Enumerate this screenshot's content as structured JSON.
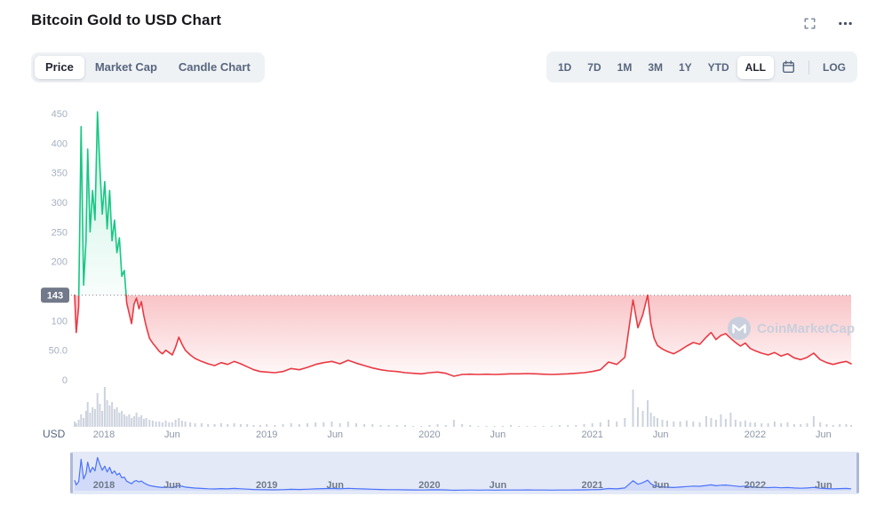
{
  "header": {
    "title": "Bitcoin Gold to USD Chart"
  },
  "toolbar": {
    "tabs": [
      {
        "label": "Price",
        "active": true
      },
      {
        "label": "Market Cap",
        "active": false
      },
      {
        "label": "Candle Chart",
        "active": false
      }
    ],
    "ranges": [
      {
        "label": "1D",
        "active": false
      },
      {
        "label": "7D",
        "active": false
      },
      {
        "label": "1M",
        "active": false
      },
      {
        "label": "3M",
        "active": false
      },
      {
        "label": "1Y",
        "active": false
      },
      {
        "label": "YTD",
        "active": false
      },
      {
        "label": "ALL",
        "active": true
      }
    ],
    "log_label": "LOG"
  },
  "watermark": {
    "label": "CoinMarketCap"
  },
  "chart_data": {
    "type": "line",
    "title": "Bitcoin Gold to USD Chart",
    "unit_label": "USD",
    "baseline": 143,
    "baseline_label": "143",
    "ylim": [
      0,
      450
    ],
    "x_range": [
      2017.82,
      2022.59
    ],
    "y_ticks": [
      {
        "v": 450,
        "label": "450"
      },
      {
        "v": 400,
        "label": "400"
      },
      {
        "v": 350,
        "label": "350"
      },
      {
        "v": 300,
        "label": "300"
      },
      {
        "v": 250,
        "label": "250"
      },
      {
        "v": 200,
        "label": "200"
      },
      {
        "v": 100,
        "label": "100"
      },
      {
        "v": 50,
        "label": "50.0"
      },
      {
        "v": 0,
        "label": "0"
      }
    ],
    "x_ticks": [
      {
        "t": 2018.0,
        "label": "2018"
      },
      {
        "t": 2018.42,
        "label": "Jun"
      },
      {
        "t": 2019.0,
        "label": "2019"
      },
      {
        "t": 2019.42,
        "label": "Jun"
      },
      {
        "t": 2020.0,
        "label": "2020"
      },
      {
        "t": 2020.42,
        "label": "Jun"
      },
      {
        "t": 2021.0,
        "label": "2021"
      },
      {
        "t": 2021.42,
        "label": "Jun"
      },
      {
        "t": 2022.0,
        "label": "2022"
      },
      {
        "t": 2022.42,
        "label": "Jun"
      }
    ],
    "colors": {
      "up": "#16C784",
      "down": "#EA3943",
      "volume": "#CDD3DE",
      "baseline": "#828DA0",
      "badge_bg": "#71798A",
      "badge_text": "#FFFFFF",
      "nav_line": "#4A72FB",
      "nav_fill": "rgba(74,114,251,0.12)",
      "nav_band": "#E4E9F7",
      "nav_handle": "#AEB9D6",
      "axis_text": "#A6B0C3",
      "x_axis_text": "#8C96A7",
      "unit_text": "#58667E"
    },
    "points": [
      [
        2017.82,
        143,
        6
      ],
      [
        2017.83,
        80,
        4
      ],
      [
        2017.845,
        125,
        8
      ],
      [
        2017.86,
        428,
        14
      ],
      [
        2017.875,
        160,
        10
      ],
      [
        2017.89,
        235,
        18
      ],
      [
        2017.9,
        390,
        28
      ],
      [
        2017.915,
        250,
        16
      ],
      [
        2017.93,
        320,
        22
      ],
      [
        2017.945,
        270,
        20
      ],
      [
        2017.96,
        453,
        38
      ],
      [
        2017.975,
        360,
        26
      ],
      [
        2017.99,
        280,
        18
      ],
      [
        2018.005,
        335,
        45
      ],
      [
        2018.02,
        255,
        30
      ],
      [
        2018.035,
        320,
        24
      ],
      [
        2018.05,
        235,
        28
      ],
      [
        2018.065,
        270,
        20
      ],
      [
        2018.08,
        215,
        22
      ],
      [
        2018.095,
        240,
        16
      ],
      [
        2018.11,
        175,
        18
      ],
      [
        2018.125,
        185,
        14
      ],
      [
        2018.14,
        130,
        12
      ],
      [
        2018.155,
        112,
        14
      ],
      [
        2018.17,
        95,
        10
      ],
      [
        2018.185,
        128,
        12
      ],
      [
        2018.2,
        138,
        16
      ],
      [
        2018.215,
        120,
        11
      ],
      [
        2018.23,
        132,
        13
      ],
      [
        2018.245,
        108,
        9
      ],
      [
        2018.26,
        90,
        10
      ],
      [
        2018.28,
        70,
        8
      ],
      [
        2018.3,
        62,
        7
      ],
      [
        2018.32,
        55,
        6
      ],
      [
        2018.34,
        48,
        6
      ],
      [
        2018.36,
        44,
        5
      ],
      [
        2018.38,
        50,
        7
      ],
      [
        2018.4,
        46,
        5
      ],
      [
        2018.42,
        42,
        5
      ],
      [
        2018.44,
        55,
        8
      ],
      [
        2018.46,
        72,
        10
      ],
      [
        2018.48,
        60,
        7
      ],
      [
        2018.5,
        50,
        6
      ],
      [
        2018.53,
        42,
        5
      ],
      [
        2018.56,
        36,
        4
      ],
      [
        2018.6,
        31,
        4
      ],
      [
        2018.64,
        27,
        3
      ],
      [
        2018.68,
        24,
        3
      ],
      [
        2018.72,
        29,
        4
      ],
      [
        2018.76,
        26,
        3
      ],
      [
        2018.8,
        31,
        4
      ],
      [
        2018.84,
        27,
        3
      ],
      [
        2018.88,
        22,
        3
      ],
      [
        2018.92,
        17,
        2
      ],
      [
        2018.96,
        14,
        2
      ],
      [
        2019.0,
        13,
        3
      ],
      [
        2019.05,
        12,
        2
      ],
      [
        2019.1,
        14,
        3
      ],
      [
        2019.15,
        19,
        4
      ],
      [
        2019.2,
        17,
        3
      ],
      [
        2019.25,
        21,
        4
      ],
      [
        2019.3,
        26,
        5
      ],
      [
        2019.35,
        29,
        5
      ],
      [
        2019.4,
        31,
        6
      ],
      [
        2019.45,
        27,
        4
      ],
      [
        2019.5,
        33,
        6
      ],
      [
        2019.55,
        28,
        4
      ],
      [
        2019.6,
        24,
        3
      ],
      [
        2019.65,
        20,
        3
      ],
      [
        2019.7,
        17,
        2
      ],
      [
        2019.75,
        15,
        2
      ],
      [
        2019.8,
        14,
        2
      ],
      [
        2019.85,
        12,
        2
      ],
      [
        2019.9,
        11,
        1
      ],
      [
        2019.95,
        10,
        1
      ],
      [
        2020.0,
        12,
        2
      ],
      [
        2020.05,
        13,
        3
      ],
      [
        2020.1,
        11,
        2
      ],
      [
        2020.15,
        6,
        8
      ],
      [
        2020.2,
        9,
        3
      ],
      [
        2020.25,
        9.5,
        2
      ],
      [
        2020.3,
        9,
        1
      ],
      [
        2020.35,
        9.5,
        1
      ],
      [
        2020.4,
        9,
        1
      ],
      [
        2020.45,
        9.5,
        1
      ],
      [
        2020.5,
        10,
        2
      ],
      [
        2020.55,
        10,
        1
      ],
      [
        2020.6,
        10.5,
        1
      ],
      [
        2020.65,
        10,
        1
      ],
      [
        2020.7,
        9.5,
        1
      ],
      [
        2020.75,
        9,
        1
      ],
      [
        2020.8,
        9.5,
        2
      ],
      [
        2020.85,
        10,
        2
      ],
      [
        2020.9,
        11,
        2
      ],
      [
        2020.95,
        12,
        3
      ],
      [
        2021.0,
        14,
        4
      ],
      [
        2021.05,
        17,
        5
      ],
      [
        2021.1,
        30,
        8
      ],
      [
        2021.15,
        26,
        6
      ],
      [
        2021.2,
        38,
        10
      ],
      [
        2021.25,
        135,
        42
      ],
      [
        2021.28,
        88,
        22
      ],
      [
        2021.31,
        110,
        18
      ],
      [
        2021.34,
        143,
        30
      ],
      [
        2021.36,
        95,
        16
      ],
      [
        2021.38,
        70,
        12
      ],
      [
        2021.4,
        58,
        10
      ],
      [
        2021.43,
        52,
        8
      ],
      [
        2021.46,
        48,
        7
      ],
      [
        2021.5,
        44,
        6
      ],
      [
        2021.54,
        50,
        6
      ],
      [
        2021.58,
        57,
        7
      ],
      [
        2021.62,
        63,
        6
      ],
      [
        2021.66,
        60,
        5
      ],
      [
        2021.7,
        72,
        12
      ],
      [
        2021.73,
        80,
        10
      ],
      [
        2021.76,
        68,
        8
      ],
      [
        2021.79,
        75,
        14
      ],
      [
        2021.82,
        78,
        9
      ],
      [
        2021.85,
        70,
        16
      ],
      [
        2021.88,
        63,
        8
      ],
      [
        2021.91,
        57,
        6
      ],
      [
        2021.94,
        62,
        7
      ],
      [
        2021.97,
        53,
        5
      ],
      [
        2022.0,
        49,
        5
      ],
      [
        2022.04,
        45,
        4
      ],
      [
        2022.08,
        42,
        4
      ],
      [
        2022.12,
        46,
        6
      ],
      [
        2022.16,
        40,
        4
      ],
      [
        2022.2,
        44,
        5
      ],
      [
        2022.24,
        37,
        3
      ],
      [
        2022.28,
        34,
        3
      ],
      [
        2022.32,
        38,
        4
      ],
      [
        2022.36,
        45,
        12
      ],
      [
        2022.4,
        34,
        5
      ],
      [
        2022.44,
        29,
        3
      ],
      [
        2022.48,
        26,
        2
      ],
      [
        2022.52,
        29,
        3
      ],
      [
        2022.56,
        31,
        3
      ],
      [
        2022.59,
        27,
        2
      ]
    ]
  }
}
